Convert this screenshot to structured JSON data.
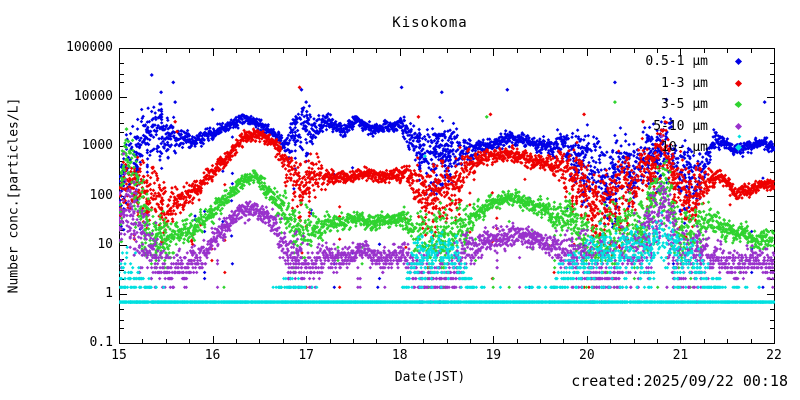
{
  "title": "Kisokoma",
  "axes": {
    "x": {
      "label": "Date(JST)",
      "min": 15,
      "max": 22,
      "major_ticks": [
        "15",
        "16",
        "17",
        "18",
        "19",
        "20",
        "21",
        "22"
      ],
      "minor_step": 0.25
    },
    "y": {
      "label": "Number conc.[particles/L]",
      "scale": "log",
      "min": 0.1,
      "max": 100000,
      "major_ticks": [
        "100000",
        "10000",
        "1000",
        "100",
        "10",
        "1",
        "0.1"
      ],
      "minor_multiples": [
        2,
        3,
        5
      ]
    }
  },
  "footer": {
    "created": "created:2025/09/22 00:18"
  },
  "legend_items": [
    {
      "label": "0.5-1 μm",
      "color": "#0000e6"
    },
    {
      "label": "1-3 μm",
      "color": "#ee0000"
    },
    {
      "label": "3-5 μm",
      "color": "#2fd32f"
    },
    {
      "label": "5-10 μm",
      "color": "#9932cc"
    },
    {
      "label": "10- μm",
      "color": "#00e0e0"
    }
  ],
  "chart_data": {
    "type": "scatter",
    "title": "Kisokoma",
    "xlabel": "Date(JST)",
    "ylabel": "Number conc.[particles/L]",
    "x_range": [
      15,
      22
    ],
    "y_range_log10": [
      -1,
      5
    ],
    "grid": false,
    "legend_position": "top-right-inside",
    "count_quantum": 0.68,
    "series": [
      {
        "name": "0.5-1 μm",
        "color": "#0000e6",
        "anchors": [
          [
            15.0,
            2.2,
            0.45
          ],
          [
            15.15,
            2.7,
            0.5
          ],
          [
            15.3,
            3.25,
            0.35
          ],
          [
            15.5,
            3.3,
            0.4
          ],
          [
            15.65,
            3.15,
            0.15
          ],
          [
            15.8,
            3.1,
            0.1
          ],
          [
            16.0,
            3.25,
            0.1
          ],
          [
            16.15,
            3.4,
            0.08
          ],
          [
            16.35,
            3.55,
            0.08
          ],
          [
            16.55,
            3.4,
            0.08
          ],
          [
            16.7,
            3.15,
            0.1
          ],
          [
            16.8,
            3.05,
            0.2
          ],
          [
            16.95,
            3.45,
            0.45
          ],
          [
            17.1,
            3.3,
            0.2
          ],
          [
            17.25,
            3.45,
            0.1
          ],
          [
            17.4,
            3.35,
            0.1
          ],
          [
            17.55,
            3.5,
            0.08
          ],
          [
            17.7,
            3.35,
            0.1
          ],
          [
            17.85,
            3.4,
            0.08
          ],
          [
            18.0,
            3.45,
            0.1
          ],
          [
            18.15,
            3.2,
            0.3
          ],
          [
            18.3,
            2.85,
            0.4
          ],
          [
            18.5,
            2.95,
            0.35
          ],
          [
            18.65,
            2.9,
            0.3
          ],
          [
            18.8,
            3.0,
            0.12
          ],
          [
            19.0,
            3.05,
            0.1
          ],
          [
            19.2,
            3.15,
            0.1
          ],
          [
            19.4,
            3.1,
            0.1
          ],
          [
            19.6,
            3.0,
            0.12
          ],
          [
            19.8,
            3.0,
            0.25
          ],
          [
            19.95,
            2.85,
            0.4
          ],
          [
            20.1,
            2.35,
            0.5
          ],
          [
            20.3,
            2.5,
            0.5
          ],
          [
            20.5,
            2.7,
            0.45
          ],
          [
            20.7,
            2.95,
            0.4
          ],
          [
            20.85,
            3.0,
            0.4
          ],
          [
            21.0,
            2.4,
            0.5
          ],
          [
            21.15,
            2.6,
            0.45
          ],
          [
            21.3,
            2.95,
            0.2
          ],
          [
            21.45,
            3.05,
            0.08
          ],
          [
            21.6,
            2.9,
            0.08
          ],
          [
            21.75,
            3.0,
            0.08
          ],
          [
            21.9,
            3.1,
            0.08
          ],
          [
            22.0,
            3.0,
            0.08
          ]
        ],
        "outliers_log10": [
          [
            15.35,
            4.45
          ],
          [
            15.45,
            4.1
          ],
          [
            15.58,
            4.3
          ],
          [
            15.6,
            3.9
          ],
          [
            16.0,
            3.75
          ],
          [
            16.95,
            4.15
          ],
          [
            17.0,
            3.9
          ],
          [
            18.02,
            4.2
          ],
          [
            18.45,
            4.1
          ],
          [
            19.15,
            4.15
          ],
          [
            20.3,
            4.3
          ],
          [
            20.85,
            3.95
          ],
          [
            21.9,
            3.9
          ]
        ]
      },
      {
        "name": "1-3 μm",
        "color": "#ee0000",
        "anchors": [
          [
            15.0,
            2.0,
            0.45
          ],
          [
            15.15,
            2.2,
            0.5
          ],
          [
            15.3,
            2.1,
            0.4
          ],
          [
            15.5,
            1.9,
            0.4
          ],
          [
            15.65,
            2.0,
            0.2
          ],
          [
            15.8,
            2.1,
            0.15
          ],
          [
            16.0,
            2.45,
            0.12
          ],
          [
            16.2,
            2.9,
            0.12
          ],
          [
            16.35,
            3.2,
            0.08
          ],
          [
            16.5,
            3.25,
            0.08
          ],
          [
            16.65,
            3.05,
            0.1
          ],
          [
            16.8,
            2.5,
            0.3
          ],
          [
            16.95,
            2.3,
            0.45
          ],
          [
            17.1,
            2.3,
            0.25
          ],
          [
            17.25,
            2.4,
            0.1
          ],
          [
            17.4,
            2.35,
            0.1
          ],
          [
            17.6,
            2.45,
            0.08
          ],
          [
            17.75,
            2.35,
            0.1
          ],
          [
            17.9,
            2.4,
            0.08
          ],
          [
            18.05,
            2.45,
            0.12
          ],
          [
            18.2,
            2.1,
            0.35
          ],
          [
            18.35,
            1.9,
            0.45
          ],
          [
            18.55,
            2.2,
            0.4
          ],
          [
            18.7,
            2.5,
            0.3
          ],
          [
            18.85,
            2.75,
            0.12
          ],
          [
            19.05,
            2.85,
            0.1
          ],
          [
            19.25,
            2.8,
            0.1
          ],
          [
            19.45,
            2.7,
            0.1
          ],
          [
            19.6,
            2.65,
            0.12
          ],
          [
            19.8,
            2.5,
            0.3
          ],
          [
            19.95,
            2.3,
            0.45
          ],
          [
            20.1,
            1.8,
            0.5
          ],
          [
            20.3,
            2.0,
            0.5
          ],
          [
            20.5,
            2.2,
            0.45
          ],
          [
            20.7,
            2.7,
            0.4
          ],
          [
            20.85,
            2.8,
            0.4
          ],
          [
            21.0,
            2.0,
            0.5
          ],
          [
            21.15,
            2.2,
            0.45
          ],
          [
            21.3,
            2.4,
            0.2
          ],
          [
            21.4,
            2.45,
            0.1
          ],
          [
            21.6,
            2.0,
            0.1
          ],
          [
            21.75,
            2.15,
            0.1
          ],
          [
            21.9,
            2.25,
            0.08
          ],
          [
            22.0,
            2.2,
            0.08
          ]
        ],
        "outliers_log10": [
          [
            15.6,
            3.5
          ],
          [
            15.62,
            3.3
          ],
          [
            16.93,
            4.2
          ],
          [
            18.2,
            3.6
          ],
          [
            18.97,
            3.65
          ],
          [
            19.97,
            3.65
          ],
          [
            20.6,
            3.5
          ]
        ]
      },
      {
        "name": "3-5 μm",
        "color": "#2fd32f",
        "anchors": [
          [
            15.0,
            1.9,
            0.5
          ],
          [
            15.1,
            2.9,
            0.45
          ],
          [
            15.2,
            2.2,
            0.5
          ],
          [
            15.35,
            1.4,
            0.4
          ],
          [
            15.5,
            1.2,
            0.35
          ],
          [
            15.7,
            1.25,
            0.2
          ],
          [
            15.9,
            1.5,
            0.15
          ],
          [
            16.1,
            1.9,
            0.12
          ],
          [
            16.3,
            2.3,
            0.1
          ],
          [
            16.45,
            2.35,
            0.1
          ],
          [
            16.6,
            2.1,
            0.12
          ],
          [
            16.75,
            1.7,
            0.25
          ],
          [
            16.9,
            1.3,
            0.45
          ],
          [
            17.05,
            1.3,
            0.3
          ],
          [
            17.2,
            1.45,
            0.15
          ],
          [
            17.4,
            1.5,
            0.12
          ],
          [
            17.6,
            1.55,
            0.1
          ],
          [
            17.75,
            1.45,
            0.12
          ],
          [
            17.9,
            1.5,
            0.1
          ],
          [
            18.05,
            1.55,
            0.15
          ],
          [
            18.2,
            1.1,
            0.4
          ],
          [
            18.35,
            0.85,
            0.45
          ],
          [
            18.55,
            1.1,
            0.4
          ],
          [
            18.7,
            1.4,
            0.3
          ],
          [
            18.85,
            1.65,
            0.15
          ],
          [
            19.0,
            1.8,
            0.12
          ],
          [
            19.2,
            1.95,
            0.12
          ],
          [
            19.4,
            1.8,
            0.12
          ],
          [
            19.6,
            1.65,
            0.15
          ],
          [
            19.8,
            1.5,
            0.3
          ],
          [
            19.95,
            1.3,
            0.45
          ],
          [
            20.1,
            0.9,
            0.5
          ],
          [
            20.3,
            1.1,
            0.5
          ],
          [
            20.5,
            1.3,
            0.45
          ],
          [
            20.7,
            1.9,
            0.4
          ],
          [
            20.85,
            2.1,
            0.4
          ],
          [
            21.0,
            1.1,
            0.5
          ],
          [
            21.15,
            1.3,
            0.45
          ],
          [
            21.3,
            1.5,
            0.2
          ],
          [
            21.45,
            1.4,
            0.15
          ],
          [
            21.6,
            1.2,
            0.15
          ],
          [
            21.8,
            1.1,
            0.15
          ],
          [
            22.0,
            1.15,
            0.15
          ]
        ],
        "outliers_log10": [
          [
            15.08,
            3.35
          ],
          [
            15.1,
            3.1
          ],
          [
            18.93,
            3.6
          ],
          [
            20.3,
            3.9
          ],
          [
            21.6,
            3.85
          ]
        ]
      },
      {
        "name": "5-10 μm",
        "color": "#9932cc",
        "anchors": [
          [
            15.0,
            1.6,
            0.5
          ],
          [
            15.1,
            2.2,
            0.5
          ],
          [
            15.2,
            1.5,
            0.5
          ],
          [
            15.35,
            0.8,
            0.4
          ],
          [
            15.5,
            0.5,
            0.35
          ],
          [
            15.7,
            0.5,
            0.25
          ],
          [
            15.9,
            0.8,
            0.2
          ],
          [
            16.1,
            1.3,
            0.15
          ],
          [
            16.3,
            1.7,
            0.12
          ],
          [
            16.45,
            1.75,
            0.12
          ],
          [
            16.6,
            1.5,
            0.15
          ],
          [
            16.75,
            1.0,
            0.3
          ],
          [
            16.9,
            0.6,
            0.45
          ],
          [
            17.05,
            0.6,
            0.3
          ],
          [
            17.2,
            0.7,
            0.2
          ],
          [
            17.4,
            0.8,
            0.15
          ],
          [
            17.6,
            0.85,
            0.15
          ],
          [
            17.75,
            0.7,
            0.15
          ],
          [
            17.9,
            0.75,
            0.15
          ],
          [
            18.05,
            0.8,
            0.2
          ],
          [
            18.2,
            0.4,
            0.4
          ],
          [
            18.35,
            0.2,
            0.45
          ],
          [
            18.55,
            0.4,
            0.4
          ],
          [
            18.7,
            0.8,
            0.3
          ],
          [
            18.85,
            1.0,
            0.2
          ],
          [
            19.0,
            1.1,
            0.15
          ],
          [
            19.2,
            1.25,
            0.15
          ],
          [
            19.4,
            1.1,
            0.15
          ],
          [
            19.6,
            1.0,
            0.15
          ],
          [
            19.8,
            0.9,
            0.3
          ],
          [
            19.95,
            0.8,
            0.45
          ],
          [
            20.1,
            0.4,
            0.5
          ],
          [
            20.3,
            0.6,
            0.5
          ],
          [
            20.5,
            0.8,
            0.45
          ],
          [
            20.7,
            1.5,
            0.45
          ],
          [
            20.85,
            1.7,
            0.45
          ],
          [
            21.0,
            0.7,
            0.5
          ],
          [
            21.15,
            0.8,
            0.45
          ],
          [
            21.3,
            0.8,
            0.25
          ],
          [
            21.45,
            0.7,
            0.2
          ],
          [
            21.6,
            0.55,
            0.2
          ],
          [
            21.8,
            0.6,
            0.2
          ],
          [
            22.0,
            0.6,
            0.2
          ]
        ],
        "outliers_log10": [
          [
            15.05,
            2.85
          ],
          [
            20.8,
            3.2
          ]
        ]
      },
      {
        "name": "10- μm",
        "color": "#00e0e0",
        "sparse": 0.5,
        "baseline_value": 0.68,
        "anchors": [
          [
            15.0,
            0.4,
            0.5
          ],
          [
            15.15,
            0.2,
            0.4
          ],
          [
            15.3,
            -0.1,
            0.25
          ],
          [
            15.6,
            -0.16,
            0.05
          ],
          [
            16.0,
            -0.16,
            0.05
          ],
          [
            16.5,
            -0.16,
            0.05
          ],
          [
            16.85,
            0.1,
            0.3
          ],
          [
            17.0,
            -0.1,
            0.15
          ],
          [
            17.5,
            -0.16,
            0.05
          ],
          [
            18.0,
            -0.16,
            0.08
          ],
          [
            18.2,
            0.8,
            0.4
          ],
          [
            18.4,
            1.0,
            0.35
          ],
          [
            18.6,
            0.6,
            0.4
          ],
          [
            18.8,
            0.0,
            0.2
          ],
          [
            19.0,
            -0.1,
            0.1
          ],
          [
            19.3,
            -0.1,
            0.15
          ],
          [
            19.6,
            0.0,
            0.2
          ],
          [
            19.85,
            0.5,
            0.4
          ],
          [
            20.1,
            0.8,
            0.4
          ],
          [
            20.4,
            0.9,
            0.4
          ],
          [
            20.7,
            1.0,
            0.4
          ],
          [
            20.9,
            1.0,
            0.4
          ],
          [
            21.1,
            0.7,
            0.4
          ],
          [
            21.3,
            0.2,
            0.3
          ],
          [
            21.5,
            -0.1,
            0.15
          ],
          [
            21.8,
            -0.1,
            0.1
          ],
          [
            22.0,
            -0.16,
            0.05
          ]
        ],
        "outliers_log10": [
          [
            18.27,
            2.8
          ],
          [
            21.63,
            3.2
          ]
        ]
      }
    ]
  }
}
